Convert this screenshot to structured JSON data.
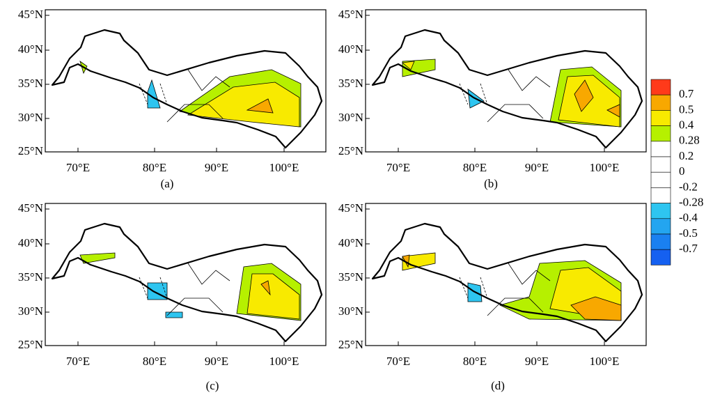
{
  "lat_ticks": [
    "45°N",
    "40°N",
    "35°N",
    "30°N",
    "25°N"
  ],
  "lon_ticks": [
    "70°E",
    "80°E",
    "90°E",
    "100°E"
  ],
  "panels": [
    {
      "label": "(a)"
    },
    {
      "label": "(b)"
    },
    {
      "label": "(c)"
    },
    {
      "label": "(d)"
    }
  ],
  "colorbar": {
    "labels": [
      "0.7",
      "0.5",
      "0.4",
      "0.28",
      "0.2",
      "0",
      "-0.2",
      "-0.28",
      "-0.4",
      "-0.5",
      "-0.7"
    ]
  }
}
